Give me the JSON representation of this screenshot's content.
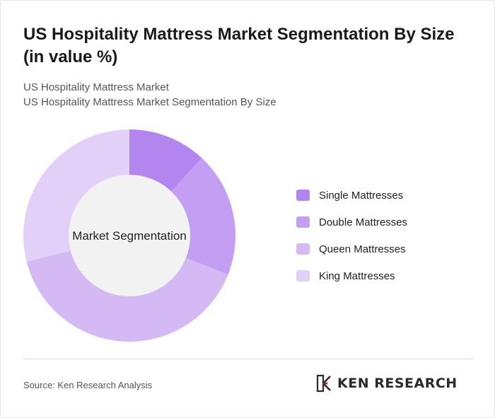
{
  "title": "US Hospitality Mattress Market Segmentation By Size (in value %)",
  "subtitle_line1": "US Hospitality Mattress Market",
  "subtitle_line2": "US Hospitality Mattress Market Segmentation By Size",
  "center_label": "Market Segmentation",
  "source": "Source: Ken Research Analysis",
  "logo": {
    "text": "KEN RESEARCH",
    "icon": "ken-research-logo-icon"
  },
  "colors": {
    "single": "#b385ee",
    "double": "#c39ef2",
    "queen": "#d4b9f5",
    "king": "#e2d0f8",
    "hole": "#f2f2f2"
  },
  "chart_data": {
    "type": "pie",
    "donut": true,
    "legend_position": "right",
    "categories": [
      "Single Mattresses",
      "Double Mattresses",
      "Queen Mattresses",
      "King Mattresses"
    ],
    "values": [
      12,
      19,
      40,
      29
    ]
  }
}
